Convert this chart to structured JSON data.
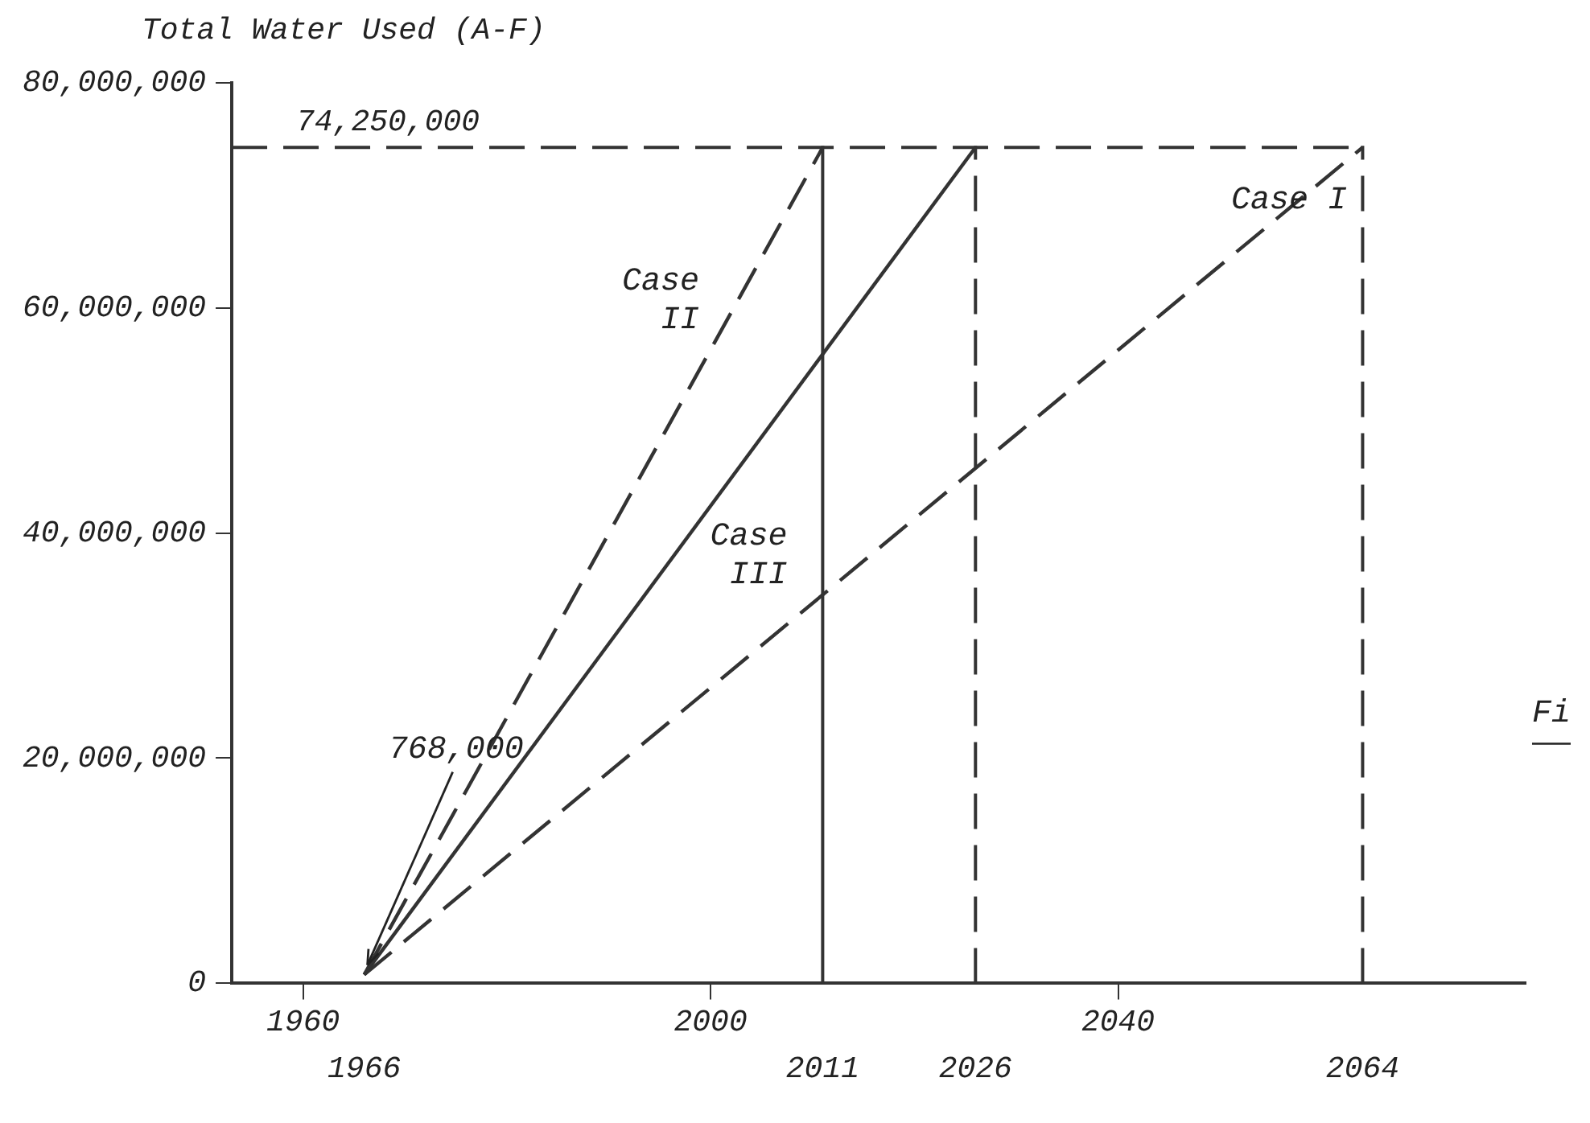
{
  "chart_data": {
    "type": "line",
    "ylabel": "Total Water Used (A-F)",
    "xlim": [
      1953,
      2080
    ],
    "ylim": [
      0,
      80000000
    ],
    "xticks": [
      1960,
      2000,
      2040
    ],
    "yticks": [
      0,
      {
        "value": 20000000,
        "label": "20,000,000"
      },
      {
        "value": 40000000,
        "label": "40,000,000"
      },
      {
        "value": 60000000,
        "label": "60,000,000"
      },
      {
        "value": 80000000,
        "label": "80,000,000"
      }
    ],
    "grid": false,
    "legend": false,
    "series": [
      {
        "name": "Case II",
        "color": "#333333",
        "line_style": "dashed",
        "x": [
          1966,
          2011
        ],
        "values": [
          768000,
          74250000
        ]
      },
      {
        "name": "Case III",
        "color": "#333333",
        "line_style": "solid",
        "x": [
          1966,
          2026
        ],
        "values": [
          768000,
          74250000
        ]
      },
      {
        "name": "Case I",
        "color": "#333333",
        "line_style": "dashed",
        "x": [
          1966,
          2064
        ],
        "values": [
          768000,
          74250000
        ]
      }
    ],
    "ref_lines": [
      {
        "axis": "y",
        "value": 74250000,
        "label": "74,250,000",
        "color": "#333333",
        "line_style": "dashed"
      },
      {
        "axis": "x",
        "value": 2011,
        "label": "2011",
        "color": "#333333",
        "line_style": "solid"
      },
      {
        "axis": "x",
        "value": 2026,
        "label": "2026",
        "color": "#333333",
        "line_style": "dashed"
      },
      {
        "axis": "x",
        "value": 2064,
        "label": "2064",
        "color": "#333333",
        "line_style": "dashed"
      }
    ],
    "annotations": [
      {
        "text": "768,000",
        "x": 1966,
        "y": 768000
      },
      "1966",
      "Fi"
    ]
  }
}
